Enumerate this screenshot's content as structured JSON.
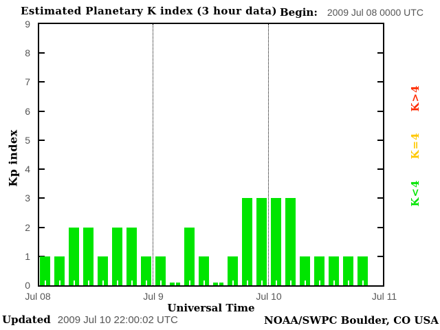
{
  "header": {
    "title": "Estimated Planetary K index (3 hour data)",
    "begin_label": "Begin:",
    "begin_value": "2009 Jul 08 0000 UTC"
  },
  "footer": {
    "updated_label": "Updated",
    "updated_value": "2009 Jul 10 22:00:02 UTC",
    "credit": "NOAA/SWPC Boulder, CO USA"
  },
  "colors": {
    "bar_green": "#00e500",
    "legend_red": "#ff2b00",
    "legend_yellow": "#ffc800",
    "tick_text_gray": "#555555"
  },
  "chart_data": {
    "type": "bar",
    "title": "Estimated Planetary K index (3 hour data)",
    "xlabel": "Universal Time",
    "ylabel": "Kp index",
    "ylim": [
      0,
      9
    ],
    "yticks": [
      0,
      1,
      2,
      3,
      4,
      5,
      6,
      7,
      8,
      9
    ],
    "x_tick_labels": [
      "Jul 08",
      "Jul 9",
      "Jul 10",
      "Jul 11"
    ],
    "x_tick_hours": [
      0,
      24,
      48,
      72
    ],
    "x_total_hours": 72,
    "bar_interval_hours": 3,
    "gridlines_hours": [
      24,
      48
    ],
    "begin_time": "2009 Jul 08 0000 UTC",
    "values": [
      1,
      1,
      2,
      2,
      1,
      2,
      2,
      1,
      1,
      0,
      2,
      1,
      0,
      1,
      3,
      3,
      3,
      3,
      1,
      1,
      1,
      1,
      1
    ],
    "legend": [
      {
        "label": "K>4",
        "color": "#ff2b00"
      },
      {
        "label": "K=4",
        "color": "#ffc800"
      },
      {
        "label": "K<4",
        "color": "#00e500"
      }
    ],
    "legend_position": "right-rotated",
    "grid": "dotted vertical lines at day boundaries"
  }
}
